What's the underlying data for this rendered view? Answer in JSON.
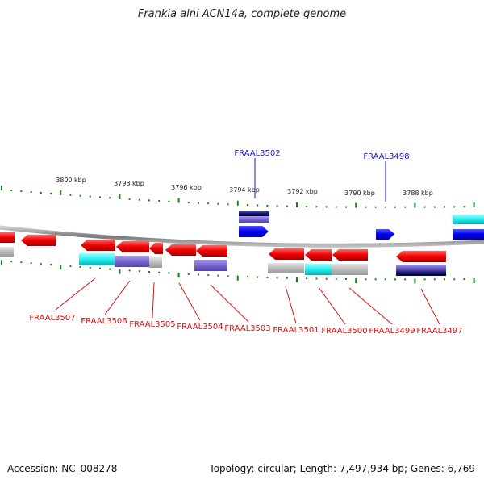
{
  "title": "Frankia alni ACN14a, complete genome",
  "footer": {
    "accession": "Accession: NC_008278",
    "genome_info": "Topology: circular; Length: 7,497,934 bp; Genes: 6,769"
  },
  "colors": {
    "forward_gene": "#1a1aff",
    "reverse_gene": "#ee1111",
    "forward_label": "#1818cc",
    "reverse_label": "#dd1111",
    "tick": "#118811",
    "backbone": "#888888",
    "cyan": "#22dddd",
    "slate": "#7766cc",
    "gray": "#bbbbbb",
    "navy": "#111166"
  },
  "ruler": {
    "labels": [
      "3800 kbp",
      "3798 kbp",
      "3796 kbp",
      "3794 kbp",
      "3792 kbp",
      "3790 kbp",
      "3788 kbp"
    ]
  },
  "genes": {
    "forward": [
      {
        "name": "FRAAL3502"
      },
      {
        "name": "FRAAL3498"
      }
    ],
    "reverse": [
      {
        "name": "FRAAL3507"
      },
      {
        "name": "FRAAL3506"
      },
      {
        "name": "FRAAL3505"
      },
      {
        "name": "FRAAL3504"
      },
      {
        "name": "FRAAL3503"
      },
      {
        "name": "FRAAL3501"
      },
      {
        "name": "FRAAL3500"
      },
      {
        "name": "FRAAL3499"
      },
      {
        "name": "FRAAL3497"
      }
    ]
  }
}
